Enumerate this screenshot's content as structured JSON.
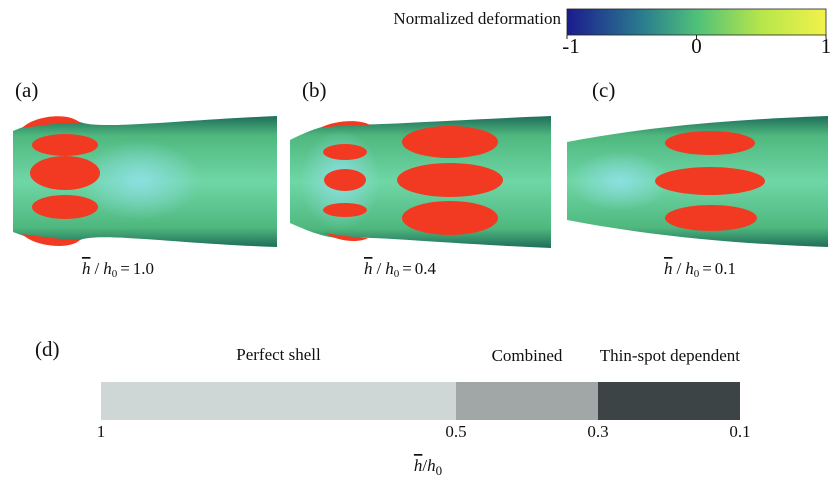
{
  "colorbar": {
    "title": "Normalized deformation",
    "range": [
      -1,
      1
    ],
    "ticks": [
      -1,
      0,
      1
    ]
  },
  "panels": [
    {
      "label": "(a)",
      "ratio": "1.0"
    },
    {
      "label": "(b)",
      "ratio": "0.4"
    },
    {
      "label": "(c)",
      "ratio": "0.1"
    }
  ],
  "ratio_symbol": {
    "var": "h",
    "sub": "0",
    "slash": "/",
    "equals": "="
  },
  "regime": {
    "label": "(d)",
    "xlim": [
      1,
      0.1
    ],
    "ticks": [
      1,
      0.5,
      0.3,
      0.1
    ],
    "segments": [
      {
        "name": "Perfect shell",
        "color": "#cfd6d6"
      },
      {
        "name": "Combined",
        "color": "#a1a7a6"
      },
      {
        "name": "Thin-spot dependent",
        "color": "#3d4446"
      }
    ]
  }
}
